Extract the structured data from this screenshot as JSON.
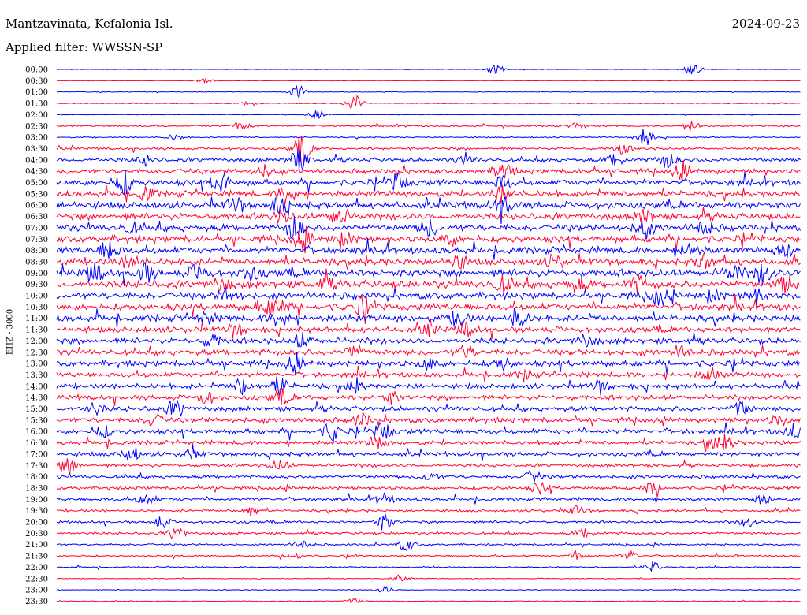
{
  "header": {
    "station": "Mantzavinata, Kefalonia Isl.",
    "filter": "Applied filter: WWSSN-SP",
    "date": "2024-09-23"
  },
  "colors": {
    "trace_a": "#0000ff",
    "trace_b": "#ff0033"
  },
  "chart_data": {
    "type": "line",
    "title": "",
    "xlabel": "",
    "ylabel": "EHZ - 3000",
    "grid": false,
    "legend": "none",
    "rows": [
      "00:00",
      "00:30",
      "01:00",
      "01:30",
      "02:00",
      "02:30",
      "03:00",
      "03:30",
      "04:00",
      "04:30",
      "05:00",
      "05:30",
      "06:00",
      "06:30",
      "07:00",
      "07:30",
      "08:00",
      "08:30",
      "09:00",
      "09:30",
      "10:00",
      "10:30",
      "11:00",
      "11:30",
      "12:00",
      "12:30",
      "13:00",
      "13:30",
      "14:00",
      "14:30",
      "15:00",
      "15:30",
      "16:00",
      "16:30",
      "17:00",
      "17:30",
      "18:00",
      "18:30",
      "19:00",
      "19:30",
      "20:00",
      "20:30",
      "21:00",
      "21:30",
      "22:00",
      "22:30",
      "23:00",
      "23:30"
    ],
    "noise_level": [
      0.3,
      0.2,
      0.4,
      0.5,
      0.3,
      1.0,
      0.8,
      1.5,
      2.5,
      3.0,
      3.5,
      3.5,
      4.0,
      4.0,
      4.0,
      4.0,
      4.0,
      4.0,
      4.5,
      4.5,
      4.0,
      4.0,
      4.0,
      3.5,
      3.5,
      3.5,
      3.5,
      3.0,
      3.0,
      3.0,
      3.0,
      3.0,
      3.0,
      2.5,
      2.5,
      2.0,
      2.0,
      2.0,
      2.0,
      1.5,
      1.5,
      1.5,
      1.2,
      1.0,
      0.8,
      0.5,
      0.5,
      0.5
    ],
    "events": [
      [
        [
          0.59,
          0.8
        ],
        [
          0.855,
          1.0
        ]
      ],
      [
        [
          0.2,
          0.4
        ]
      ],
      [
        [
          0.325,
          1.2
        ]
      ],
      [
        [
          0.4,
          1.6
        ],
        [
          0.26,
          0.5
        ]
      ],
      [
        [
          0.35,
          0.7
        ]
      ],
      [
        [
          0.25,
          0.8
        ],
        [
          0.855,
          0.8
        ],
        [
          0.7,
          0.5
        ]
      ],
      [
        [
          0.79,
          1.6
        ],
        [
          0.16,
          0.5
        ]
      ],
      [
        [
          0.33,
          2.5
        ],
        [
          0.76,
          0.9
        ]
      ],
      [
        [
          0.325,
          2.0
        ],
        [
          0.75,
          1.2
        ],
        [
          0.82,
          1.4
        ],
        [
          0.55,
          0.8
        ],
        [
          0.12,
          0.8
        ]
      ],
      [
        [
          0.6,
          1.6
        ],
        [
          0.28,
          0.9
        ],
        [
          0.84,
          1.2
        ]
      ],
      [
        [
          0.09,
          2.0
        ],
        [
          0.22,
          2.0
        ],
        [
          0.46,
          1.5
        ],
        [
          0.6,
          1.2
        ]
      ],
      [
        [
          0.31,
          2.0
        ],
        [
          0.6,
          1.6
        ],
        [
          0.12,
          1.0
        ]
      ],
      [
        [
          0.24,
          1.4
        ],
        [
          0.3,
          1.4
        ],
        [
          0.6,
          1.6
        ]
      ],
      [
        [
          0.38,
          1.6
        ],
        [
          0.79,
          1.2
        ],
        [
          0.3,
          1.0
        ]
      ],
      [
        [
          0.32,
          2.0
        ],
        [
          0.5,
          1.4
        ],
        [
          0.79,
          1.6
        ],
        [
          0.87,
          1.2
        ],
        [
          0.1,
          0.8
        ]
      ],
      [
        [
          0.33,
          1.6
        ],
        [
          0.385,
          1.4
        ],
        [
          0.53,
          1.0
        ]
      ],
      [
        [
          0.07,
          1.8
        ],
        [
          0.85,
          1.2
        ],
        [
          0.98,
          1.2
        ]
      ],
      [
        [
          0.1,
          1.4
        ],
        [
          0.54,
          1.2
        ],
        [
          0.67,
          1.2
        ],
        [
          0.87,
          1.2
        ]
      ],
      [
        [
          0.05,
          1.6
        ],
        [
          0.12,
          1.6
        ],
        [
          0.19,
          1.4
        ],
        [
          0.26,
          1.2
        ],
        [
          0.95,
          1.8
        ],
        [
          0.91,
          1.4
        ]
      ],
      [
        [
          0.22,
          1.2
        ],
        [
          0.36,
          1.0
        ],
        [
          0.6,
          1.2
        ],
        [
          0.7,
          1.1
        ],
        [
          0.78,
          1.4
        ],
        [
          0.98,
          1.4
        ]
      ],
      [
        [
          0.23,
          1.4
        ],
        [
          0.81,
          1.4
        ],
        [
          0.88,
          1.2
        ],
        [
          0.94,
          1.2
        ]
      ],
      [
        [
          0.28,
          1.4
        ],
        [
          0.41,
          1.6
        ],
        [
          0.3,
          1.0
        ]
      ],
      [
        [
          0.3,
          1.4
        ],
        [
          0.54,
          1.4
        ],
        [
          0.62,
          1.6
        ],
        [
          0.2,
          1.0
        ]
      ],
      [
        [
          0.24,
          1.2
        ],
        [
          0.55,
          1.2
        ],
        [
          0.5,
          1.0
        ]
      ],
      [
        [
          0.33,
          1.2
        ],
        [
          0.71,
          1.2
        ],
        [
          0.21,
          1.0
        ]
      ],
      [
        [
          0.4,
          1.4
        ],
        [
          0.55,
          1.2
        ],
        [
          0.84,
          1.1
        ]
      ],
      [
        [
          0.32,
          1.2
        ],
        [
          0.6,
          1.0
        ],
        [
          0.5,
          0.9
        ]
      ],
      [
        [
          0.88,
          1.2
        ],
        [
          0.63,
          1.0
        ]
      ],
      [
        [
          0.25,
          1.4
        ],
        [
          0.3,
          1.6
        ],
        [
          0.73,
          1.2
        ],
        [
          0.4,
          1.0
        ]
      ],
      [
        [
          0.3,
          1.2
        ],
        [
          0.45,
          1.0
        ],
        [
          0.2,
          1.0
        ]
      ],
      [
        [
          0.16,
          1.6
        ],
        [
          0.92,
          1.4
        ],
        [
          0.05,
          1.0
        ]
      ],
      [
        [
          0.41,
          1.2
        ],
        [
          0.13,
          1.0
        ],
        [
          0.97,
          1.0
        ]
      ],
      [
        [
          0.37,
          1.6
        ],
        [
          0.44,
          1.6
        ],
        [
          0.06,
          1.0
        ],
        [
          0.99,
          1.2
        ]
      ],
      [
        [
          0.43,
          1.2
        ],
        [
          0.88,
          1.2
        ],
        [
          0.9,
          1.0
        ]
      ],
      [
        [
          0.1,
          1.4
        ],
        [
          0.18,
          1.0
        ]
      ],
      [
        [
          0.015,
          1.4
        ],
        [
          0.3,
          0.9
        ]
      ],
      [
        [
          0.5,
          0.9
        ],
        [
          0.64,
          1.0
        ]
      ],
      [
        [
          0.65,
          1.0
        ],
        [
          0.8,
          1.0
        ]
      ],
      [
        [
          0.12,
          1.1
        ],
        [
          0.44,
          1.0
        ],
        [
          0.95,
          0.9
        ]
      ],
      [
        [
          0.26,
          1.0
        ],
        [
          0.7,
          0.9
        ]
      ],
      [
        [
          0.44,
          1.4
        ],
        [
          0.14,
          1.0
        ],
        [
          0.93,
          0.9
        ]
      ],
      [
        [
          0.16,
          1.2
        ],
        [
          0.71,
          1.0
        ]
      ],
      [
        [
          0.47,
          1.0
        ],
        [
          0.33,
          0.8
        ]
      ],
      [
        [
          0.7,
          0.8
        ],
        [
          0.77,
          0.9
        ],
        [
          0.32,
          0.6
        ]
      ],
      [
        [
          0.8,
          1.0
        ]
      ],
      [
        [
          0.46,
          0.5
        ]
      ],
      [
        [
          0.44,
          0.6
        ]
      ],
      [
        [
          0.4,
          0.5
        ]
      ]
    ]
  }
}
